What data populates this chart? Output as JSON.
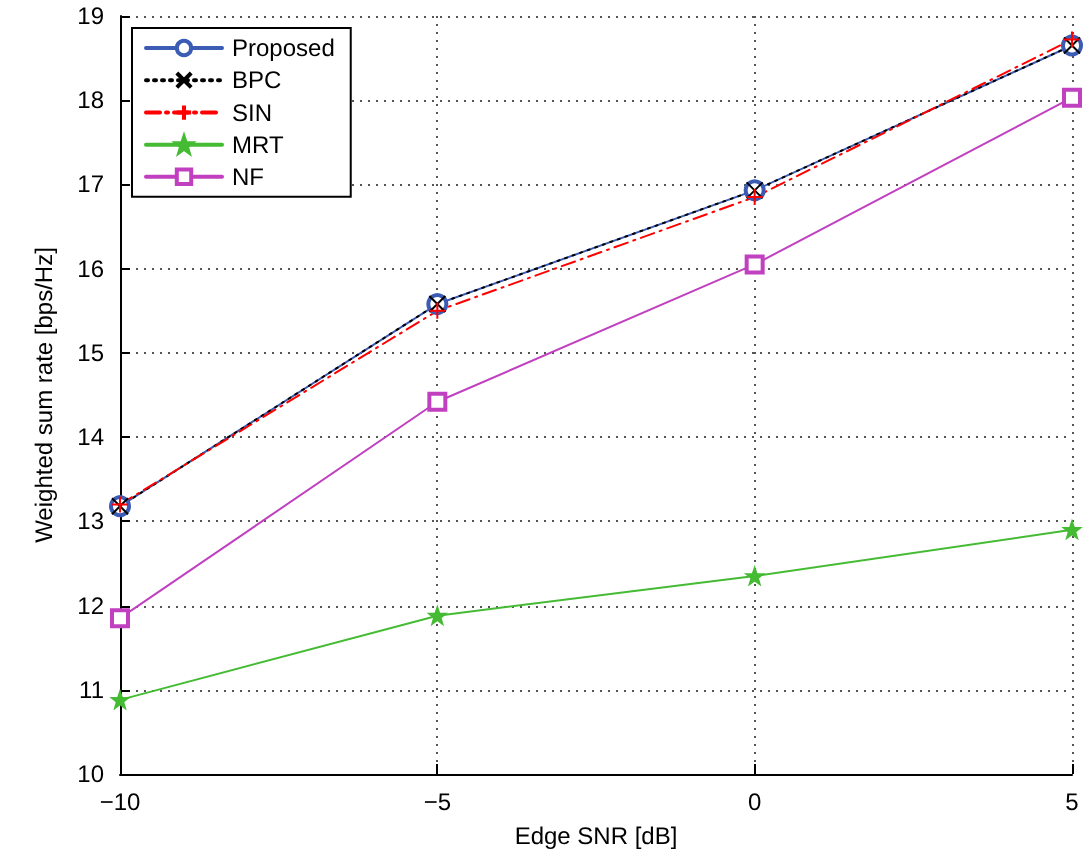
{
  "chart_data": {
    "type": "line",
    "xlabel": "Edge SNR [dB]",
    "ylabel": "Weighted sum rate [bps/Hz]",
    "x": [
      -10,
      -5,
      0,
      5
    ],
    "series": [
      {
        "name": "Proposed",
        "color": "#3b5bb5",
        "marker": "circle",
        "line_style": "solid",
        "values": [
          13.18,
          15.58,
          16.93,
          18.65
        ]
      },
      {
        "name": "BPC",
        "color": "#000000",
        "marker": "cross",
        "line_style": "dotted",
        "values": [
          13.18,
          15.58,
          16.93,
          18.65
        ]
      },
      {
        "name": "SIN",
        "color": "#ff0000",
        "marker": "plus",
        "line_style": "dashed",
        "values": [
          13.2,
          15.5,
          16.85,
          18.72
        ]
      },
      {
        "name": "MRT",
        "color": "#44bb33",
        "marker": "star",
        "line_style": "solid",
        "values": [
          10.88,
          11.88,
          12.35,
          12.9
        ]
      },
      {
        "name": "NF",
        "color": "#c040c0",
        "marker": "square",
        "line_style": "solid",
        "values": [
          11.85,
          14.42,
          16.05,
          18.03
        ]
      }
    ],
    "xlim": [
      -10,
      5
    ],
    "xticks": [
      -10,
      -5,
      0,
      5
    ],
    "ylim": [
      10,
      19
    ],
    "yticks": [
      10,
      11,
      12,
      13,
      14,
      15,
      16,
      17,
      18,
      19
    ],
    "grid": true,
    "legend": "top left"
  }
}
